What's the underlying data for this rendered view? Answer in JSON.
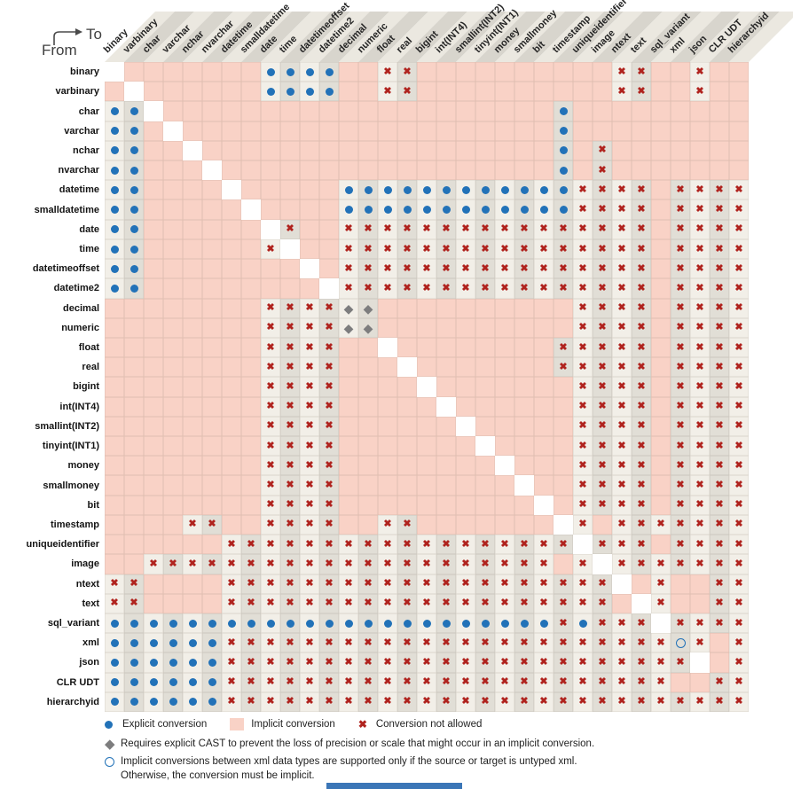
{
  "axis_labels": {
    "to": "To",
    "from": "From"
  },
  "legend": {
    "explicit": "Explicit conversion",
    "implicit": "Implicit conversion",
    "not_allowed": "Conversion not allowed",
    "diamond_note": "Requires explicit CAST to prevent the loss of precision or scale that might occur in an implicit conversion.",
    "circle_note_line1": "Implicit conversions between xml data types are supported only if the source or target is untyped xml.",
    "circle_note_line2": "Otherwise, the conversion must be implicit."
  },
  "colors": {
    "explicit_dot": "#2272b8",
    "not_allowed_x": "#b0231e",
    "implicit_pink": "#f9d2c6",
    "diamond_gray": "#7d7d7e",
    "circle_blue": "#2272b8",
    "col_tint_light": "#f2efe8",
    "col_tint_dark": "#e1ded6",
    "stripe_light": "#ebe8e0",
    "stripe_dark": "#d8d5cd"
  },
  "chart_data": {
    "type": "heatmap",
    "title": "SQL Server data type conversion matrix (From row type To column type)",
    "x_axis_label": "To",
    "y_axis_label": "From",
    "legend_codes": {
      "E": "explicit conversion (blue dot)",
      "I": "implicit conversion (pink cell)",
      "X": "conversion not allowed (red x)",
      "D": "requires explicit CAST to prevent loss of precision or scale (gray diamond)",
      "O": "implicit only if source or target is untyped xml (open blue circle)",
      "S": "same type diagonal (blank white cell)"
    },
    "types": [
      "binary",
      "varbinary",
      "char",
      "varchar",
      "nchar",
      "nvarchar",
      "datetime",
      "smalldatetime",
      "date",
      "time",
      "datetimeoffset",
      "datetime2",
      "decimal",
      "numeric",
      "float",
      "real",
      "bigint",
      "int(INT4)",
      "smallint(INT2)",
      "tinyint(INT1)",
      "money",
      "smallmoney",
      "bit",
      "timestamp",
      "uniqueidentifier",
      "image",
      "ntext",
      "text",
      "sql_variant",
      "xml",
      "json",
      "CLR UDT",
      "hierarchyid"
    ],
    "rows": [
      "SIIIIIIIEEEEIIXXIIIIIIIIIIXXIIXII",
      "ISIIIIIIEEEEIIXXIIIIIIIIIIXXIIXII",
      "EESIIIIIIIIIIIIIIIIIIIIEIIIIIIIII",
      "EEISIIIIIIIIIIIIIIIIIIIEIIIIIIIII",
      "EEIISIIIIIIIIIIIIIIIIIIEIXIIIIIII",
      "EEIIISIIIIIIIIIIIIIIIIIEIXIIIIIII",
      "EEIIIISIIIIIEEEEEEEEEEEEXXXXIXXXX",
      "EEIIIIISIIIIEEEEEEEEEEEEXXXXIXXXX",
      "EEIIIIIISXIIXXXXXXXXXXXXXXXXIXXXX",
      "EEIIIIIIXSIIXXXXXXXXXXXXXXXXIXXXX",
      "EEIIIIIIIISIXXXXXXXXXXXXXXXXIXXXX",
      "EEIIIIIIIIISXXXXXXXXXXXXXXXXIXXXX",
      "IIIIIIIIXXXXDDIIIIIIIIIIXXXXIXXXX",
      "IIIIIIIIXXXXDDIIIIIIIIIIXXXXIXXXX",
      "IIIIIIIIXXXXIISIIIIIIIIXXXXXIXXXX",
      "IIIIIIIIXXXXIIISIIIIIIIXXXXXIXXXX",
      "IIIIIIIIXXXXIIIISIIIIIIIXXXXIXXXX",
      "IIIIIIIIXXXXIIIIISIIIIIIXXXXIXXXX",
      "IIIIIIIIXXXXIIIIIISIIIIIXXXXIXXXX",
      "IIIIIIIIXXXXIIIIIIISIIIIXXXXIXXXX",
      "IIIIIIIIXXXXIIIIIIIISIIIXXXXIXXXX",
      "IIIIIIIIXXXXIIIIIIIIISIIXXXXIXXXX",
      "IIIIIIIIXXXXIIIIIIIIIISIXXXXIXXXX",
      "IIIIXXIIXXXXIIXXIIIIIIISXIXXXXXXX",
      "IIIIIIXXXXXXXXXXXXXXXXXXSXXXIXXXX",
      "IIXXXXXXXXXXXXXXXXXXXXXIXSXXXXXXX",
      "XXIIIIXXXXXXXXXXXXXXXXXXXXSIXIIXX",
      "XXIIIIXXXXXXXXXXXXXXXXXXXXISXIIXX",
      "EEEEEEEEEEEEEEEEEEEEEEEXEXXXSXXXX",
      "EEEEEEXXXXXXXXXXXXXXXXXXXXXXXOXIX",
      "EEEEEEXXXXXXXXXXXXXXXXXXXXXXXXSIX",
      "EEEEEEXXXXXXXXXXXXXXXXXXXXXXXIIXX",
      "EEEEEEXXXXXXXXXXXXXXXXXXXXXXXXXXX"
    ]
  }
}
